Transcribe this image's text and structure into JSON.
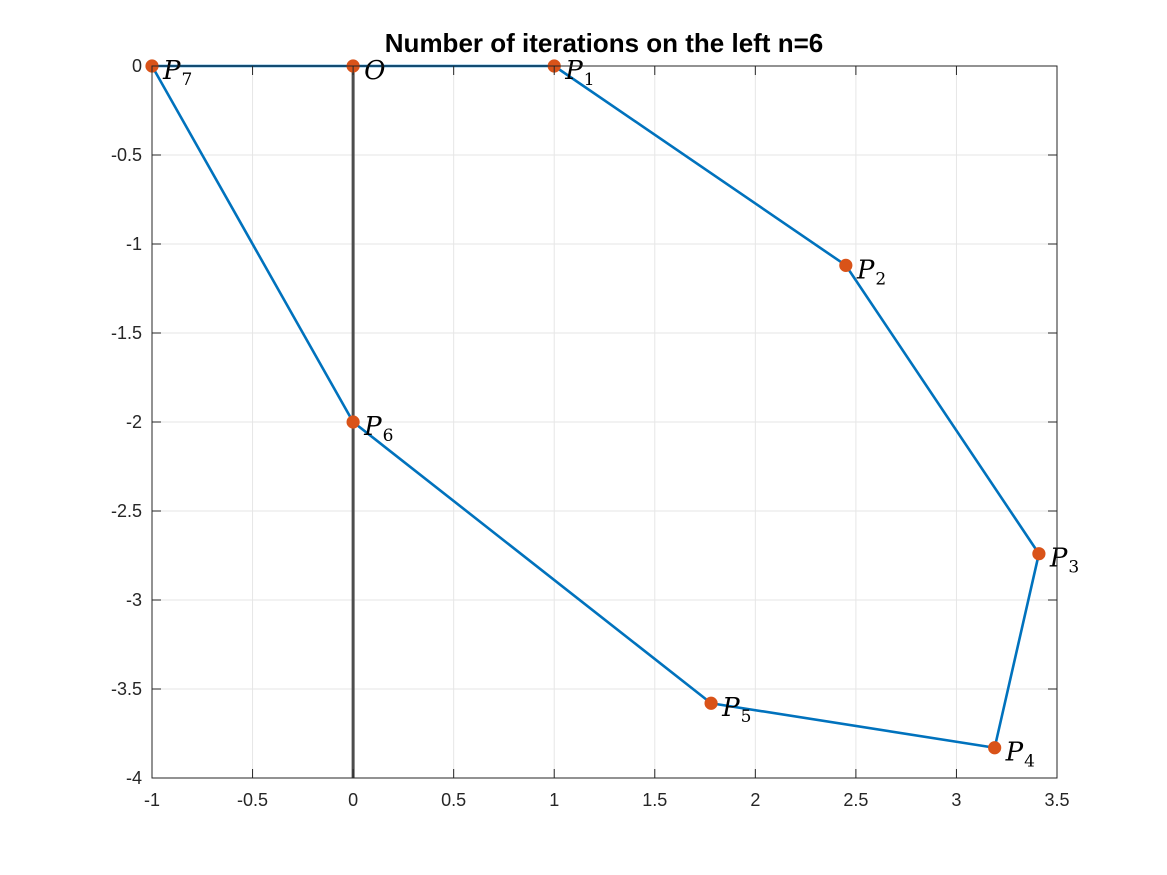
{
  "chart_data": {
    "type": "line",
    "title": "Number of iterations on the left n=6",
    "xlabel": "",
    "ylabel": "",
    "xlim": [
      -1,
      3.5
    ],
    "ylim": [
      -4,
      0
    ],
    "xticks": [
      "-1",
      "-0.5",
      "0",
      "0.5",
      "1",
      "1.5",
      "2",
      "2.5",
      "3",
      "3.5"
    ],
    "yticks": [
      "0",
      "-0.5",
      "-1",
      "-1.5",
      "-2",
      "-2.5",
      "-3",
      "-3.5",
      "-4"
    ],
    "grid": true,
    "box": true,
    "series": [
      {
        "color": "#0072BD",
        "marker_color": "#D95319",
        "points": [
          {
            "x": 0,
            "y": 0,
            "label": "O",
            "sub": ""
          },
          {
            "x": 1,
            "y": 0,
            "label": "P",
            "sub": "1"
          },
          {
            "x": 2.45,
            "y": -1.12,
            "label": "P",
            "sub": "2"
          },
          {
            "x": 3.41,
            "y": -2.74,
            "label": "P",
            "sub": "3"
          },
          {
            "x": 3.19,
            "y": -3.83,
            "label": "P",
            "sub": "4"
          },
          {
            "x": 1.78,
            "y": -3.58,
            "label": "P",
            "sub": "5"
          },
          {
            "x": 0,
            "y": -2,
            "label": "P",
            "sub": "6"
          },
          {
            "x": -1,
            "y": 0,
            "label": "P",
            "sub": "7"
          }
        ],
        "path_order": [
          0,
          1,
          2,
          3,
          4,
          5,
          6,
          7,
          0
        ]
      }
    ],
    "reference_lines": [
      {
        "orientation": "vertical",
        "x": 0,
        "y_from": 0,
        "y_to": -4,
        "color": "#4D4D4D"
      }
    ]
  }
}
